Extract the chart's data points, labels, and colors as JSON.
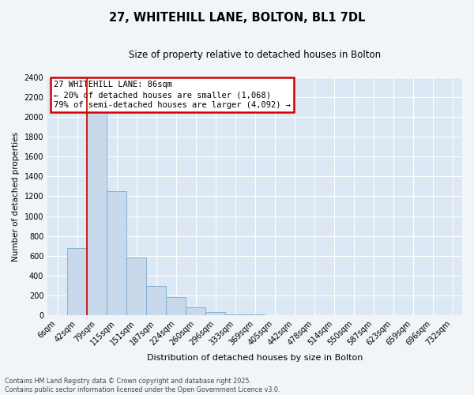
{
  "title": "27, WHITEHILL LANE, BOLTON, BL1 7DL",
  "subtitle": "Size of property relative to detached houses in Bolton",
  "xlabel": "Distribution of detached houses by size in Bolton",
  "ylabel": "Number of detached properties",
  "bins": [
    "6sqm",
    "42sqm",
    "79sqm",
    "115sqm",
    "151sqm",
    "187sqm",
    "224sqm",
    "260sqm",
    "296sqm",
    "333sqm",
    "369sqm",
    "405sqm",
    "442sqm",
    "478sqm",
    "514sqm",
    "550sqm",
    "587sqm",
    "623sqm",
    "659sqm",
    "696sqm",
    "732sqm"
  ],
  "values": [
    0,
    680,
    2050,
    1250,
    580,
    300,
    185,
    80,
    35,
    15,
    10,
    5,
    3,
    2,
    1,
    1,
    0,
    0,
    0,
    0,
    0
  ],
  "bar_color": "#c8d9ec",
  "bar_edge_color": "#7aaacf",
  "annotation_box_color": "#cc0000",
  "annotation_title": "27 WHITEHILL LANE: 86sqm",
  "annotation_line1": "← 20% of detached houses are smaller (1,068)",
  "annotation_line2": "79% of semi-detached houses are larger (4,092) →",
  "property_line_x": 1.5,
  "ylim": [
    0,
    2400
  ],
  "yticks": [
    0,
    200,
    400,
    600,
    800,
    1000,
    1200,
    1400,
    1600,
    1800,
    2000,
    2200,
    2400
  ],
  "footer_line1": "Contains HM Land Registry data © Crown copyright and database right 2025.",
  "footer_line2": "Contains public sector information licensed under the Open Government Licence v3.0.",
  "plot_bg_color": "#dce8f3",
  "fig_bg_color": "#f2f5f8",
  "grid_color": "#ffffff",
  "title_fontsize": 10.5,
  "subtitle_fontsize": 8.5,
  "xlabel_fontsize": 8,
  "ylabel_fontsize": 7.5,
  "tick_fontsize": 7,
  "footer_fontsize": 5.8,
  "ann_fontsize": 7.5
}
